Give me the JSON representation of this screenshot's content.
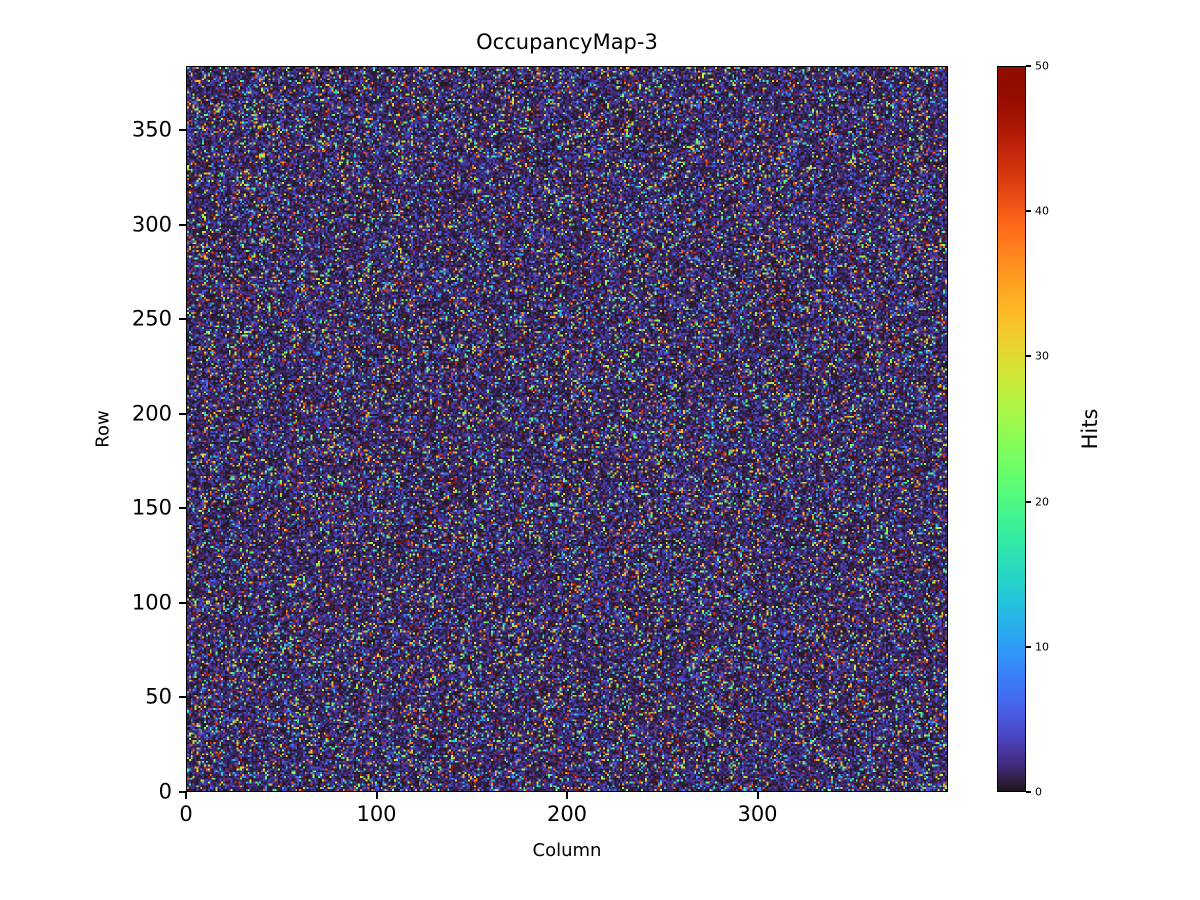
{
  "figure": {
    "title": "OccupancyMap-3"
  },
  "chart_data": {
    "type": "heatmap",
    "title": "OccupancyMap-3",
    "xlabel": "Column",
    "ylabel": "Row",
    "x_range": [
      0,
      400
    ],
    "y_range": [
      0,
      384
    ],
    "x_ticks": [
      0,
      100,
      200,
      300
    ],
    "y_ticks": [
      0,
      50,
      100,
      150,
      200,
      250,
      300,
      350
    ],
    "grid": {
      "cols": 400,
      "rows": 384
    },
    "colorbar": {
      "label": "Hits",
      "ticks": [
        0,
        10,
        20,
        30,
        40,
        50
      ],
      "vmin": 0,
      "vmax": 50,
      "colormap": "turbo"
    },
    "data_description": "Dense random pixel-occupancy noise: most cells have values near 0 hits (dark indigo background) with scattered individual pixels spanning the full 0-50 range (blue, cyan, green, yellow, orange, red speckles).",
    "generation": {
      "seed": 12345,
      "dark_fraction": 0.83,
      "dark_max": 6,
      "bright_max": 50
    },
    "layout": {
      "grid_lines": false,
      "legend": "colorbar-right"
    }
  }
}
